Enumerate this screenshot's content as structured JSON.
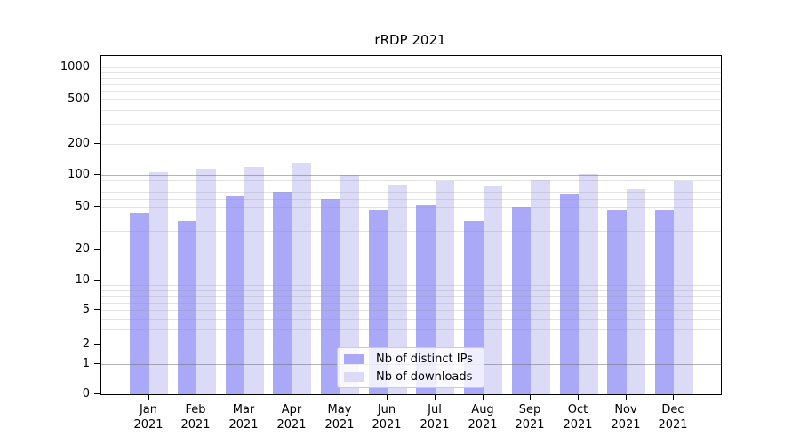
{
  "title": "rRDP 2021",
  "chart_data": {
    "type": "bar",
    "title": "rRDP 2021",
    "categories": [
      "Jan 2021",
      "Feb 2021",
      "Mar 2021",
      "Apr 2021",
      "May 2021",
      "Jun 2021",
      "Jul 2021",
      "Aug 2021",
      "Sep 2021",
      "Oct 2021",
      "Nov 2021",
      "Dec 2021"
    ],
    "series": [
      {
        "name": "Nb of distinct IPs",
        "color": "#a9a9f7",
        "values": [
          44,
          37,
          63,
          69,
          60,
          46,
          52,
          37,
          50,
          66,
          47,
          46
        ]
      },
      {
        "name": "Nb of downloads",
        "color": "#dbdbf8",
        "values": [
          106,
          116,
          120,
          132,
          101,
          82,
          87,
          78,
          90,
          102,
          73,
          88
        ]
      }
    ],
    "yscale": "symlog",
    "yticks": [
      0,
      1,
      2,
      5,
      10,
      20,
      50,
      100,
      200,
      500,
      1000
    ],
    "ylim": [
      0,
      1000
    ],
    "xlabel": "",
    "ylabel": "",
    "grid": "on",
    "legend_position": "lower center"
  },
  "colors": {
    "distinct_ips": "#a9a9f7",
    "downloads": "#dbdbf8",
    "grid_decade": "rgba(105,105,105,0.50)",
    "grid_minor": "rgba(150,150,150,0.27)",
    "axis": "#000000",
    "legend_border": "#cccccc",
    "legend_background": "rgba(255,255,255,0.8)"
  }
}
